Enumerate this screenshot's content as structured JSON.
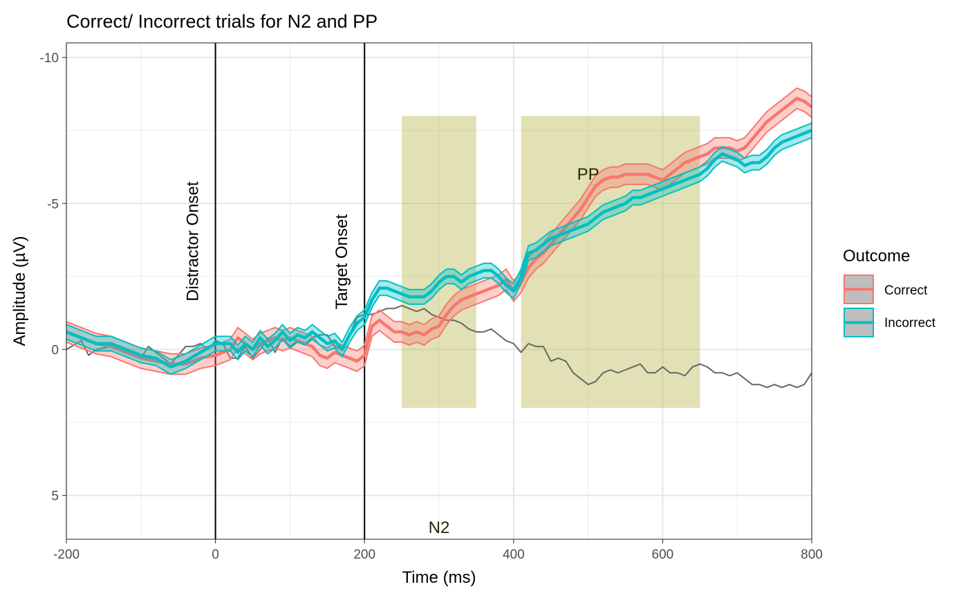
{
  "chart_data": {
    "type": "line",
    "title": "Correct/ Incorrect trials for N2 and PP",
    "xlabel": "Time (ms)",
    "ylabel": "Amplitude (µV)",
    "xlim": [
      -200,
      800
    ],
    "ylim": [
      6.5,
      -10.5
    ],
    "y_reversed": true,
    "grid": true,
    "x_ticks": [
      -200,
      0,
      200,
      400,
      600,
      800
    ],
    "x_tick_labels": [
      "-200",
      "0",
      "200",
      "400",
      "600",
      "800"
    ],
    "y_ticks": [
      -10,
      -5,
      0,
      5
    ],
    "y_tick_labels": [
      "-10",
      "-5",
      "0",
      "5"
    ],
    "vlines": [
      {
        "x": 0,
        "label": "Distractor Onset"
      },
      {
        "x": 200,
        "label": "Target Onset"
      }
    ],
    "windows": [
      {
        "x": [
          250,
          350
        ],
        "y": [
          -8,
          2
        ],
        "label": "N2"
      },
      {
        "x": [
          410,
          650
        ],
        "y": [
          -8,
          2
        ],
        "label": "PP"
      }
    ],
    "window_label_positions": [
      {
        "label": "N2",
        "x": 300,
        "y": 6.1
      },
      {
        "label": "PP",
        "x": 500,
        "y": -6
      }
    ],
    "window_color": "#bdbd5a",
    "legend": {
      "title": "Outcome",
      "position": "right",
      "entries": [
        "Correct",
        "Incorrect"
      ]
    },
    "series": [
      {
        "name": "Correct",
        "color": "#f8766d",
        "band": 0.35,
        "x": [
          -200,
          -180,
          -160,
          -140,
          -120,
          -100,
          -80,
          -60,
          -40,
          -20,
          0,
          20,
          30,
          40,
          50,
          60,
          70,
          80,
          90,
          100,
          110,
          120,
          130,
          140,
          150,
          160,
          170,
          180,
          190,
          200,
          210,
          220,
          230,
          240,
          250,
          260,
          270,
          280,
          290,
          300,
          310,
          320,
          330,
          340,
          350,
          360,
          370,
          380,
          390,
          400,
          410,
          420,
          430,
          440,
          450,
          460,
          470,
          480,
          490,
          500,
          510,
          520,
          530,
          540,
          550,
          560,
          570,
          580,
          590,
          600,
          610,
          620,
          630,
          640,
          650,
          660,
          670,
          680,
          690,
          700,
          710,
          720,
          730,
          740,
          750,
          760,
          770,
          780,
          790,
          800
        ],
        "y": [
          -0.6,
          -0.4,
          -0.2,
          -0.1,
          0.1,
          0.3,
          0.4,
          0.5,
          0.5,
          0.3,
          0.2,
          0,
          -0.4,
          -0.2,
          0,
          -0.2,
          -0.3,
          -0.4,
          -0.3,
          -0.4,
          -0.3,
          -0.2,
          -0.1,
          0.2,
          0.3,
          0.1,
          0.2,
          0.3,
          0.4,
          0.2,
          -0.8,
          -1.0,
          -0.8,
          -0.6,
          -0.6,
          -0.5,
          -0.6,
          -0.5,
          -0.7,
          -0.8,
          -1.2,
          -1.5,
          -1.7,
          -1.8,
          -1.9,
          -2.0,
          -2.1,
          -2.2,
          -2.4,
          -2.0,
          -2.3,
          -2.8,
          -3.1,
          -3.3,
          -3.6,
          -3.9,
          -4.2,
          -4.5,
          -4.8,
          -5.2,
          -5.6,
          -5.8,
          -5.9,
          -5.9,
          -6.0,
          -6.0,
          -6.0,
          -6.0,
          -5.9,
          -5.8,
          -6.0,
          -6.2,
          -6.4,
          -6.5,
          -6.6,
          -6.7,
          -6.9,
          -6.9,
          -6.9,
          -6.8,
          -6.9,
          -7.2,
          -7.5,
          -7.8,
          -8.0,
          -8.2,
          -8.4,
          -8.6,
          -8.5,
          -8.3
        ]
      },
      {
        "name": "Incorrect",
        "color": "#00bfc4",
        "band": 0.25,
        "x": [
          -200,
          -180,
          -160,
          -140,
          -120,
          -100,
          -80,
          -60,
          -40,
          -20,
          0,
          20,
          30,
          40,
          50,
          60,
          70,
          80,
          90,
          100,
          110,
          120,
          130,
          140,
          150,
          160,
          170,
          180,
          190,
          200,
          210,
          220,
          230,
          240,
          250,
          260,
          270,
          280,
          290,
          300,
          310,
          320,
          330,
          340,
          350,
          360,
          370,
          380,
          390,
          400,
          410,
          420,
          430,
          440,
          450,
          460,
          470,
          480,
          490,
          500,
          510,
          520,
          530,
          540,
          550,
          560,
          570,
          580,
          590,
          600,
          610,
          620,
          630,
          640,
          650,
          660,
          670,
          680,
          690,
          700,
          710,
          720,
          730,
          740,
          750,
          760,
          770,
          780,
          790,
          800
        ],
        "y": [
          -0.6,
          -0.4,
          -0.2,
          -0.2,
          0,
          0.2,
          0.3,
          0.6,
          0.4,
          0.1,
          -0.2,
          -0.2,
          0.1,
          -0.2,
          0,
          -0.4,
          -0.1,
          -0.3,
          -0.6,
          -0.3,
          -0.5,
          -0.4,
          -0.6,
          -0.4,
          -0.2,
          -0.3,
          0,
          -0.5,
          -0.9,
          -1.1,
          -1.7,
          -2.1,
          -2.1,
          -2.0,
          -1.9,
          -1.8,
          -1.8,
          -1.8,
          -2.0,
          -2.3,
          -2.5,
          -2.5,
          -2.3,
          -2.5,
          -2.6,
          -2.7,
          -2.7,
          -2.5,
          -2.2,
          -2.0,
          -2.5,
          -3.3,
          -3.4,
          -3.6,
          -3.8,
          -3.9,
          -4.0,
          -4.1,
          -4.2,
          -4.3,
          -4.5,
          -4.7,
          -4.8,
          -4.9,
          -5.0,
          -5.2,
          -5.2,
          -5.3,
          -5.4,
          -5.5,
          -5.6,
          -5.7,
          -5.8,
          -5.9,
          -6.0,
          -6.2,
          -6.5,
          -6.7,
          -6.6,
          -6.5,
          -6.3,
          -6.4,
          -6.4,
          -6.6,
          -6.9,
          -7.1,
          -7.2,
          -7.3,
          -7.4,
          -7.5
        ]
      },
      {
        "name": "",
        "color": "#666666",
        "band": 0,
        "x": [
          -200,
          -180,
          -170,
          -160,
          -140,
          -120,
          -100,
          -90,
          -80,
          -60,
          -40,
          -30,
          -20,
          -10,
          0,
          10,
          20,
          30,
          40,
          50,
          60,
          70,
          80,
          90,
          100,
          110,
          120,
          130,
          140,
          150,
          160,
          170,
          180,
          190,
          200,
          210,
          220,
          230,
          240,
          250,
          260,
          270,
          280,
          290,
          300,
          310,
          320,
          330,
          340,
          350,
          360,
          370,
          380,
          390,
          400,
          410,
          420,
          430,
          440,
          450,
          460,
          470,
          480,
          490,
          500,
          510,
          520,
          530,
          540,
          550,
          560,
          570,
          580,
          590,
          600,
          610,
          620,
          630,
          640,
          650,
          660,
          670,
          680,
          690,
          700,
          710,
          720,
          730,
          740,
          750,
          760,
          770,
          780,
          790,
          800
        ],
        "y": [
          0,
          -0.3,
          0.2,
          0,
          -0.1,
          0.1,
          0.3,
          -0.1,
          0.1,
          0.5,
          -0.1,
          -0.1,
          -0.2,
          0,
          -0.3,
          -0.2,
          0.3,
          0.3,
          -0.1,
          0.3,
          0,
          -0.4,
          0.1,
          -0.4,
          -0.1,
          -0.3,
          -0.2,
          -0.4,
          -0.5,
          -0.5,
          -0.1,
          0,
          -0.5,
          -1.1,
          -1.2,
          -1.2,
          -1.3,
          -1.4,
          -1.4,
          -1.5,
          -1.4,
          -1.3,
          -1.4,
          -1.2,
          -1.1,
          -1.0,
          -1.0,
          -0.9,
          -0.7,
          -0.6,
          -0.6,
          -0.7,
          -0.5,
          -0.3,
          -0.2,
          0.1,
          -0.2,
          -0.1,
          -0.1,
          0.4,
          0.3,
          0.4,
          0.8,
          1.0,
          1.2,
          1.1,
          0.8,
          0.7,
          0.8,
          0.7,
          0.6,
          0.5,
          0.8,
          0.8,
          0.6,
          0.8,
          0.8,
          0.9,
          0.6,
          0.5,
          0.6,
          0.8,
          0.8,
          0.9,
          0.8,
          1.0,
          1.2,
          1.2,
          1.3,
          1.2,
          1.3,
          1.2,
          1.3,
          1.2,
          0.8
        ]
      }
    ]
  }
}
